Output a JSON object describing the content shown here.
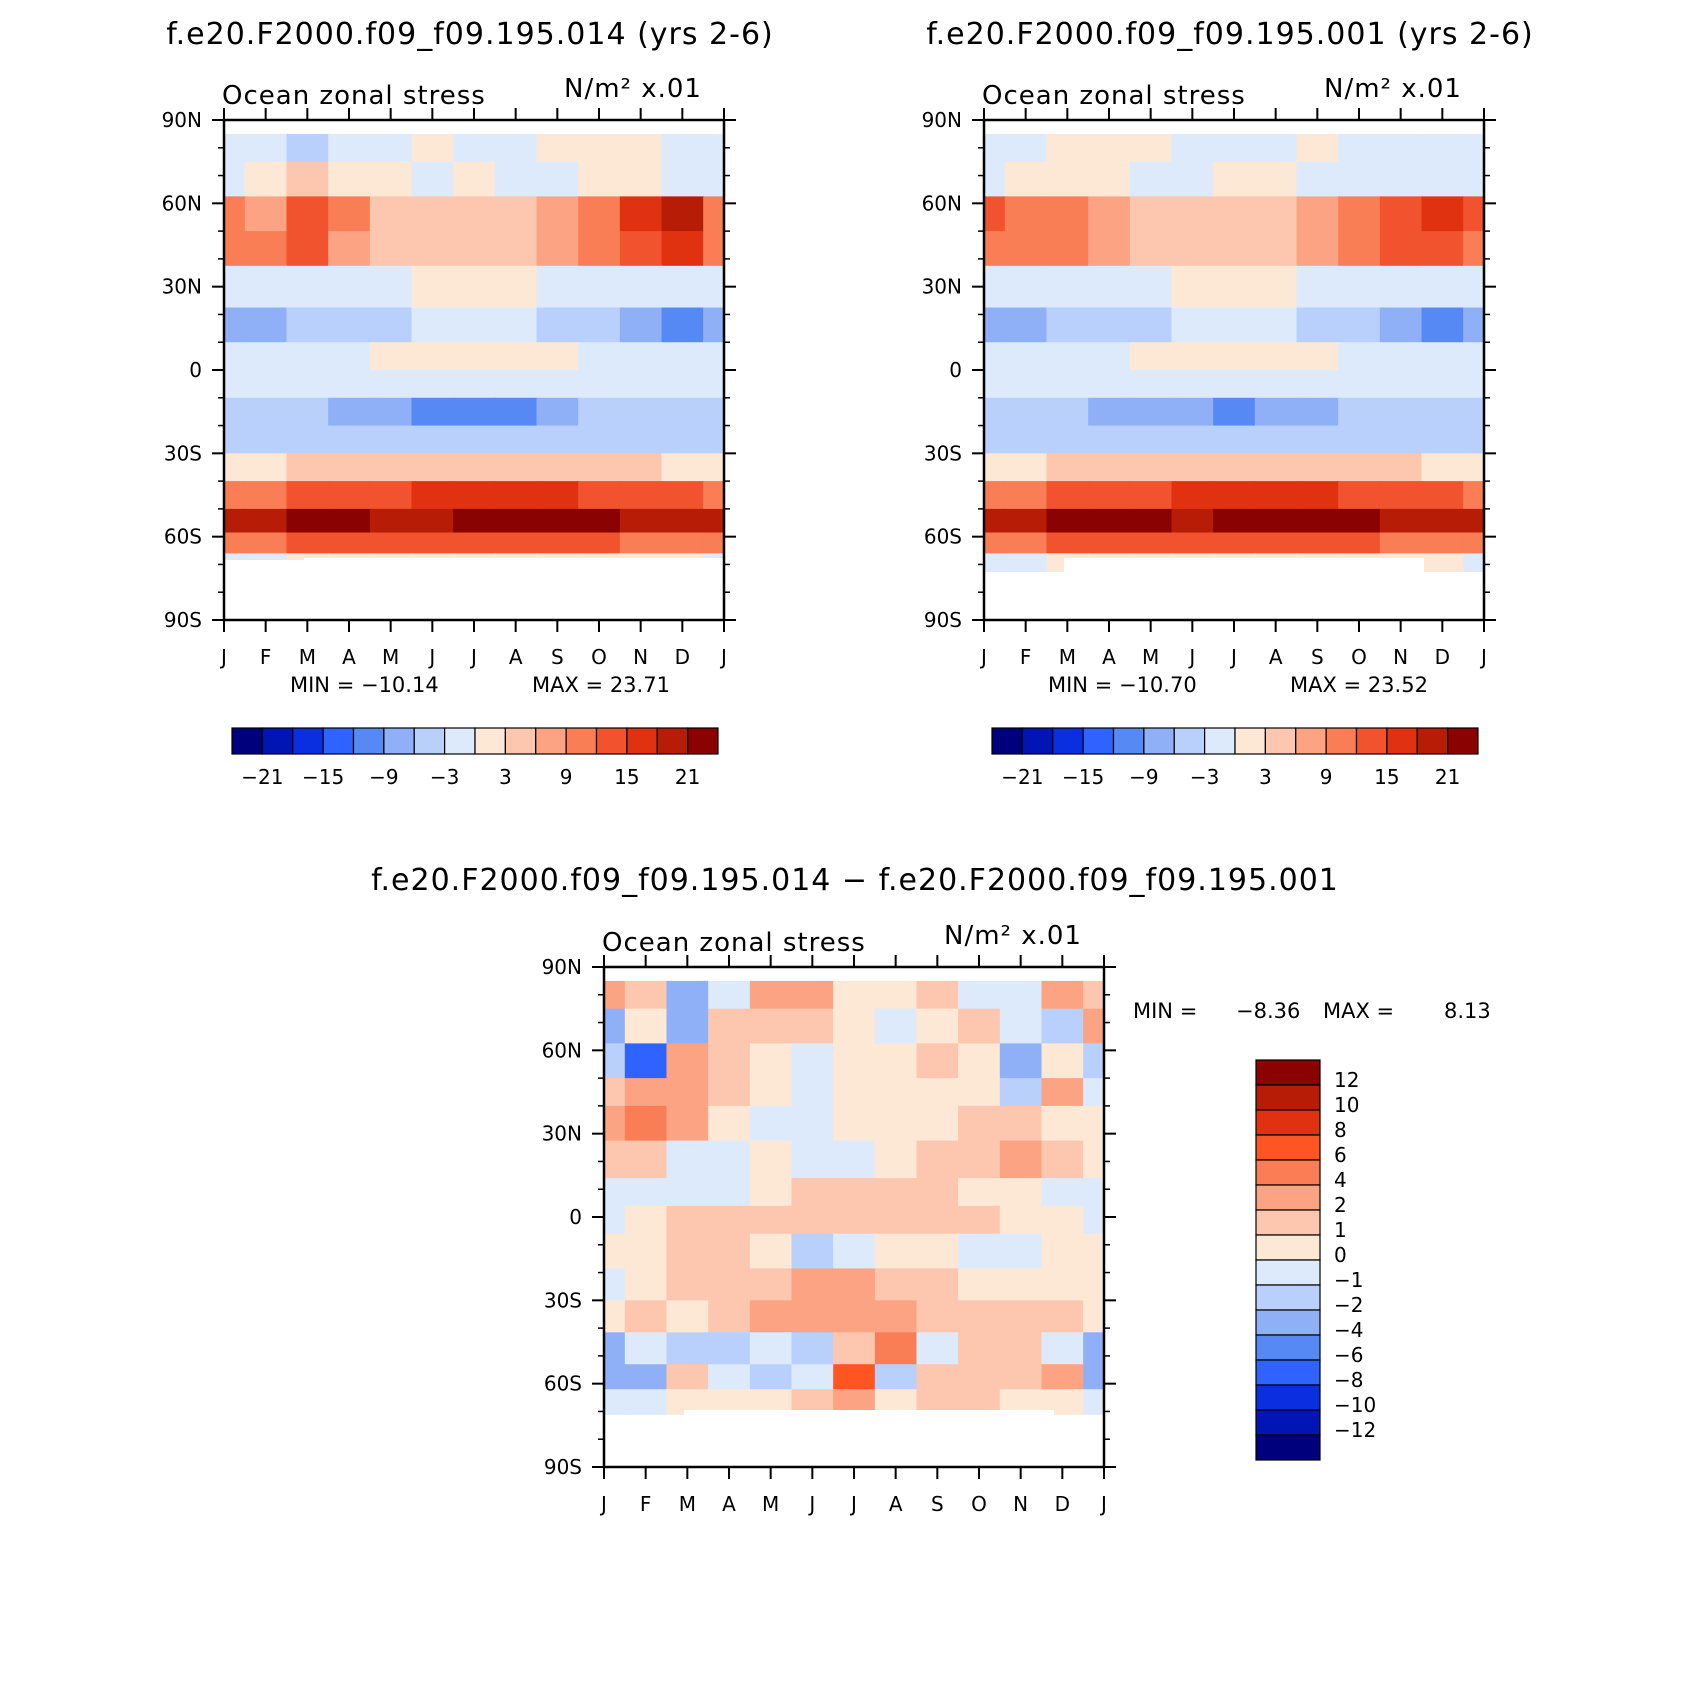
{
  "chart_data": [
    {
      "type": "heatmap",
      "id": "panel-014",
      "title": "f.e20.F2000.f09_f09.195.014 (yrs 2-6)",
      "variable": "Ocean zonal stress",
      "units": "N/m² x.01",
      "xlabel": "",
      "ylabel": "",
      "x_ticks": [
        "J",
        "F",
        "M",
        "A",
        "M",
        "J",
        "J",
        "A",
        "S",
        "O",
        "N",
        "D",
        "J"
      ],
      "y_ticks": [
        "90N",
        "60N",
        "30N",
        "0",
        "30S",
        "60S",
        "90S"
      ],
      "ylim": [
        -90,
        90
      ],
      "min_label": "MIN = −10.14",
      "max_label": "MAX = 23.71",
      "min": -10.14,
      "max": 23.71,
      "colorbar_labels": [
        "−21",
        "−15",
        "−9",
        "−3",
        "3",
        "9",
        "15",
        "21"
      ],
      "colorbar_colors": [
        "#00007d",
        "#0015b4",
        "#0a2fe0",
        "#2e63ff",
        "#5789f5",
        "#8fb0f7",
        "#b8d0fb",
        "#dceafc",
        "#fde8d6",
        "#fcc7ae",
        "#fca383",
        "#f97d55",
        "#f0532e",
        "#e03210",
        "#b71c06",
        "#8a0202"
      ],
      "bands": [
        {
          "lat": 80,
          "values": [
            -3,
            -3,
            -6,
            -3,
            -1,
            1,
            -1,
            -1,
            2,
            1,
            2,
            -1,
            -3
          ]
        },
        {
          "lat": 70,
          "values": [
            -3,
            2,
            3,
            2,
            1,
            -1,
            0,
            -1,
            -1,
            1,
            1,
            -3,
            -3
          ]
        },
        {
          "lat": 55,
          "values": [
            9,
            7,
            12,
            9,
            5,
            4,
            4,
            5,
            8,
            11,
            15,
            19,
            11
          ]
        },
        {
          "lat": 45,
          "values": [
            10,
            10,
            12,
            8,
            5,
            4,
            3,
            4,
            7,
            10,
            13,
            15,
            10
          ]
        },
        {
          "lat": 30,
          "values": [
            -1,
            -2,
            -2,
            -3,
            -2,
            1,
            2,
            1,
            -1,
            -2,
            -2,
            -3,
            -2
          ]
        },
        {
          "lat": 15,
          "values": [
            -9,
            -8,
            -6,
            -5,
            -4,
            -2,
            -2,
            -2,
            -4,
            -6,
            -8,
            -10,
            -9
          ]
        },
        {
          "lat": 5,
          "values": [
            -3,
            -3,
            -2,
            -1,
            1,
            2,
            2,
            2,
            1,
            -1,
            -2,
            -3,
            -3
          ]
        },
        {
          "lat": -5,
          "values": [
            -2,
            -2,
            -2,
            -2,
            -1,
            -1,
            -1,
            -1,
            -1,
            -1,
            -2,
            -2,
            -2
          ]
        },
        {
          "lat": -15,
          "values": [
            -4,
            -5,
            -6,
            -7,
            -9,
            -10,
            -10,
            -10,
            -8,
            -6,
            -5,
            -4,
            -4
          ]
        },
        {
          "lat": -25,
          "values": [
            -6,
            -6,
            -5,
            -5,
            -5,
            -4,
            -4,
            -4,
            -4,
            -4,
            -4,
            -5,
            -6
          ]
        },
        {
          "lat": -35,
          "values": [
            2,
            2,
            3,
            3,
            4,
            5,
            5,
            5,
            5,
            4,
            3,
            2,
            2
          ]
        },
        {
          "lat": -45,
          "values": [
            11,
            11,
            12,
            13,
            14,
            15,
            15,
            15,
            15,
            14,
            13,
            12,
            11
          ]
        },
        {
          "lat": -55,
          "values": [
            18,
            19,
            22,
            21,
            20,
            20,
            21,
            21,
            23,
            21,
            19,
            18,
            18
          ]
        },
        {
          "lat": -62,
          "values": [
            10,
            11,
            12,
            12,
            13,
            13,
            14,
            13,
            13,
            12,
            11,
            10,
            10
          ]
        },
        {
          "lat": -70,
          "values": [
            -2,
            -1,
            0,
            0,
            0,
            0,
            0,
            0,
            0,
            0,
            0,
            0,
            -2
          ]
        }
      ]
    },
    {
      "type": "heatmap",
      "id": "panel-001",
      "title": "f.e20.F2000.f09_f09.195.001 (yrs 2-6)",
      "variable": "Ocean zonal stress",
      "units": "N/m² x.01",
      "xlabel": "",
      "ylabel": "",
      "x_ticks": [
        "J",
        "F",
        "M",
        "A",
        "M",
        "J",
        "J",
        "A",
        "S",
        "O",
        "N",
        "D",
        "J"
      ],
      "y_ticks": [
        "90N",
        "60N",
        "30N",
        "0",
        "30S",
        "60S",
        "90S"
      ],
      "ylim": [
        -90,
        90
      ],
      "min_label": "MIN = −10.70",
      "max_label": "MAX = 23.52",
      "min": -10.7,
      "max": 23.52,
      "colorbar_labels": [
        "−21",
        "−15",
        "−9",
        "−3",
        "3",
        "9",
        "15",
        "21"
      ],
      "colorbar_colors": [
        "#00007d",
        "#0015b4",
        "#0a2fe0",
        "#2e63ff",
        "#5789f5",
        "#8fb0f7",
        "#b8d0fb",
        "#dceafc",
        "#fde8d6",
        "#fcc7ae",
        "#fca383",
        "#f97d55",
        "#f0532e",
        "#e03210",
        "#b71c06",
        "#8a0202"
      ],
      "bands": [
        {
          "lat": 80,
          "values": [
            -3,
            -2,
            1,
            2,
            1,
            -1,
            -1,
            -1,
            1,
            -1,
            -1,
            -2,
            -3
          ]
        },
        {
          "lat": 70,
          "values": [
            -2,
            2,
            2,
            1,
            -1,
            -1,
            0,
            0,
            -1,
            -1,
            -2,
            -3,
            -2
          ]
        },
        {
          "lat": 55,
          "values": [
            13,
            10,
            9,
            6,
            5,
            3,
            3,
            4,
            7,
            10,
            14,
            17,
            12
          ]
        },
        {
          "lat": 45,
          "values": [
            11,
            10,
            9,
            7,
            5,
            4,
            3,
            4,
            6,
            9,
            13,
            14,
            11
          ]
        },
        {
          "lat": 30,
          "values": [
            -1,
            -2,
            -2,
            -3,
            -2,
            1,
            1,
            1,
            -1,
            -2,
            -3,
            -3,
            -2
          ]
        },
        {
          "lat": 15,
          "values": [
            -9,
            -8,
            -6,
            -5,
            -4,
            -2,
            -2,
            -2,
            -4,
            -6,
            -8,
            -10,
            -9
          ]
        },
        {
          "lat": 5,
          "values": [
            -3,
            -3,
            -2,
            -1,
            1,
            2,
            2,
            2,
            1,
            -1,
            -2,
            -3,
            -3
          ]
        },
        {
          "lat": -5,
          "values": [
            -2,
            -2,
            -2,
            -2,
            -1,
            -1,
            -1,
            -1,
            -1,
            -1,
            -2,
            -2,
            -2
          ]
        },
        {
          "lat": -15,
          "values": [
            -4,
            -5,
            -6,
            -7,
            -8,
            -9,
            -10,
            -9,
            -8,
            -6,
            -5,
            -4,
            -4
          ]
        },
        {
          "lat": -25,
          "values": [
            -6,
            -6,
            -5,
            -5,
            -5,
            -4,
            -4,
            -4,
            -4,
            -4,
            -4,
            -5,
            -6
          ]
        },
        {
          "lat": -35,
          "values": [
            2,
            2,
            3,
            3,
            4,
            5,
            5,
            5,
            5,
            4,
            3,
            2,
            2
          ]
        },
        {
          "lat": -45,
          "values": [
            11,
            11,
            12,
            13,
            14,
            15,
            15,
            15,
            15,
            14,
            13,
            12,
            11
          ]
        },
        {
          "lat": -55,
          "values": [
            18,
            20,
            22,
            21,
            21,
            20,
            21,
            21,
            23,
            21,
            19,
            18,
            18
          ]
        },
        {
          "lat": -62,
          "values": [
            10,
            11,
            12,
            12,
            13,
            13,
            14,
            13,
            13,
            12,
            11,
            10,
            10
          ]
        },
        {
          "lat": -70,
          "values": [
            -2,
            -1,
            0,
            0,
            0,
            0,
            0,
            0,
            0,
            0,
            0,
            0,
            -2
          ]
        }
      ]
    },
    {
      "type": "heatmap",
      "id": "panel-diff",
      "title": "f.e20.F2000.f09_f09.195.014 − f.e20.F2000.f09_f09.195.001",
      "variable": "Ocean zonal stress",
      "units": "N/m² x.01",
      "xlabel": "",
      "ylabel": "",
      "x_ticks": [
        "J",
        "F",
        "M",
        "A",
        "M",
        "J",
        "J",
        "A",
        "S",
        "O",
        "N",
        "D",
        "J"
      ],
      "y_ticks": [
        "90N",
        "60N",
        "30N",
        "0",
        "30S",
        "60S",
        "90S"
      ],
      "ylim": [
        -90,
        90
      ],
      "min_label": "MIN =",
      "min_value": "−8.36",
      "max_label": "MAX =",
      "max_value": "8.13",
      "min": -8.36,
      "max": 8.13,
      "colorbar_labels": [
        "12",
        "10",
        "8",
        "6",
        "4",
        "2",
        "1",
        "0",
        "−1",
        "−2",
        "−4",
        "−6",
        "−8",
        "−10",
        "−12"
      ],
      "colorbar_colors": [
        "#8a0202",
        "#b71c06",
        "#e03210",
        "#ff5522",
        "#f97d55",
        "#fca383",
        "#fcc7ae",
        "#fde8d6",
        "#dceafc",
        "#b8d0fb",
        "#8fb0f7",
        "#5789f5",
        "#2e63ff",
        "#0a2fe0",
        "#0015b4",
        "#00007d"
      ],
      "bands": [
        {
          "lat": 80,
          "values": [
            3,
            1,
            -4,
            -1,
            2,
            2,
            0,
            0,
            1,
            -1,
            -1,
            2,
            1
          ]
        },
        {
          "lat": 70,
          "values": [
            -3,
            0,
            -3,
            1,
            1,
            1,
            0,
            -1,
            0,
            1,
            -1,
            -2,
            2
          ]
        },
        {
          "lat": 55,
          "values": [
            -2,
            -8,
            3,
            1,
            0,
            -1,
            0,
            0,
            1,
            0,
            -3,
            0,
            -2
          ]
        },
        {
          "lat": 45,
          "values": [
            1,
            2,
            3,
            1,
            0,
            -1,
            0,
            0,
            0,
            0,
            -2,
            2,
            -1
          ]
        },
        {
          "lat": 35,
          "values": [
            2,
            4,
            2,
            0,
            -1,
            -1,
            0,
            0,
            0,
            1,
            1,
            0,
            0
          ]
        },
        {
          "lat": 20,
          "values": [
            1,
            1,
            -1,
            -1,
            0,
            -1,
            -1,
            0,
            1,
            1,
            2,
            1,
            0
          ]
        },
        {
          "lat": 8,
          "values": [
            -1,
            -1,
            -1,
            -1,
            0,
            1,
            1,
            1,
            1,
            0,
            0,
            -1,
            -1
          ]
        },
        {
          "lat": 0,
          "values": [
            -1,
            0,
            1,
            1,
            1,
            1,
            1,
            1,
            1,
            1,
            0,
            0,
            -1
          ]
        },
        {
          "lat": -12,
          "values": [
            0,
            0,
            1,
            1,
            0,
            -2,
            -1,
            0,
            0,
            -1,
            -1,
            0,
            0
          ]
        },
        {
          "lat": -25,
          "values": [
            -1,
            0,
            1,
            1,
            1,
            2,
            2,
            1,
            1,
            0,
            0,
            0,
            0
          ]
        },
        {
          "lat": -35,
          "values": [
            0,
            1,
            0,
            1,
            2,
            3,
            2,
            3,
            1,
            1,
            1,
            1,
            0
          ]
        },
        {
          "lat": -48,
          "values": [
            -3,
            -1,
            -2,
            -2,
            -1,
            -2,
            1,
            4,
            -1,
            1,
            1,
            -1,
            -3
          ]
        },
        {
          "lat": -58,
          "values": [
            -3,
            -3,
            1,
            -1,
            -2,
            -1,
            6,
            -2,
            1,
            1,
            1,
            2,
            -3
          ]
        },
        {
          "lat": -66,
          "values": [
            -1,
            -1,
            0,
            0,
            0,
            1,
            2,
            0,
            1,
            1,
            0,
            0,
            -1
          ]
        }
      ]
    }
  ]
}
